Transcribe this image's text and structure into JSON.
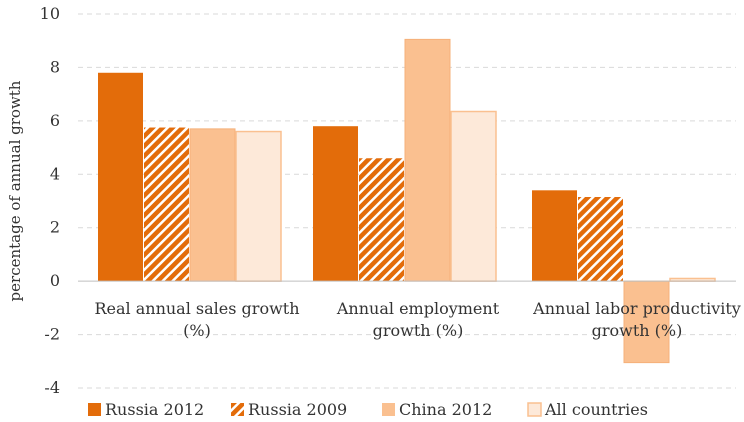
{
  "chart_data": {
    "type": "bar",
    "title": "",
    "xlabel": "",
    "ylabel": "percentage of annual growth",
    "ylim": [
      -4,
      10
    ],
    "yticks": [
      "10",
      "8",
      "6",
      "4",
      "2",
      "0",
      "-2",
      "-4"
    ],
    "grid": true,
    "legend_position": "bottom",
    "categories": [
      [
        "Real annual sales growth",
        "(%)"
      ],
      [
        "Annual employment",
        "growth (%)"
      ],
      [
        "Annual labor productivity",
        "growth (%)"
      ]
    ],
    "series": [
      {
        "name": "Russia 2012",
        "values": [
          7.8,
          5.8,
          3.4
        ],
        "color": "#e36c0a",
        "pattern": "solid"
      },
      {
        "name": "Russia 2009",
        "values": [
          5.75,
          4.6,
          3.15
        ],
        "color": "#e36c0a",
        "pattern": "hatched"
      },
      {
        "name": "China 2012",
        "values": [
          5.7,
          9.05,
          -3.05
        ],
        "color": "#fac090",
        "pattern": "solid"
      },
      {
        "name": "All countries",
        "values": [
          5.6,
          6.35,
          0.1
        ],
        "color": "#fde9d9",
        "pattern": "outlined"
      }
    ]
  }
}
